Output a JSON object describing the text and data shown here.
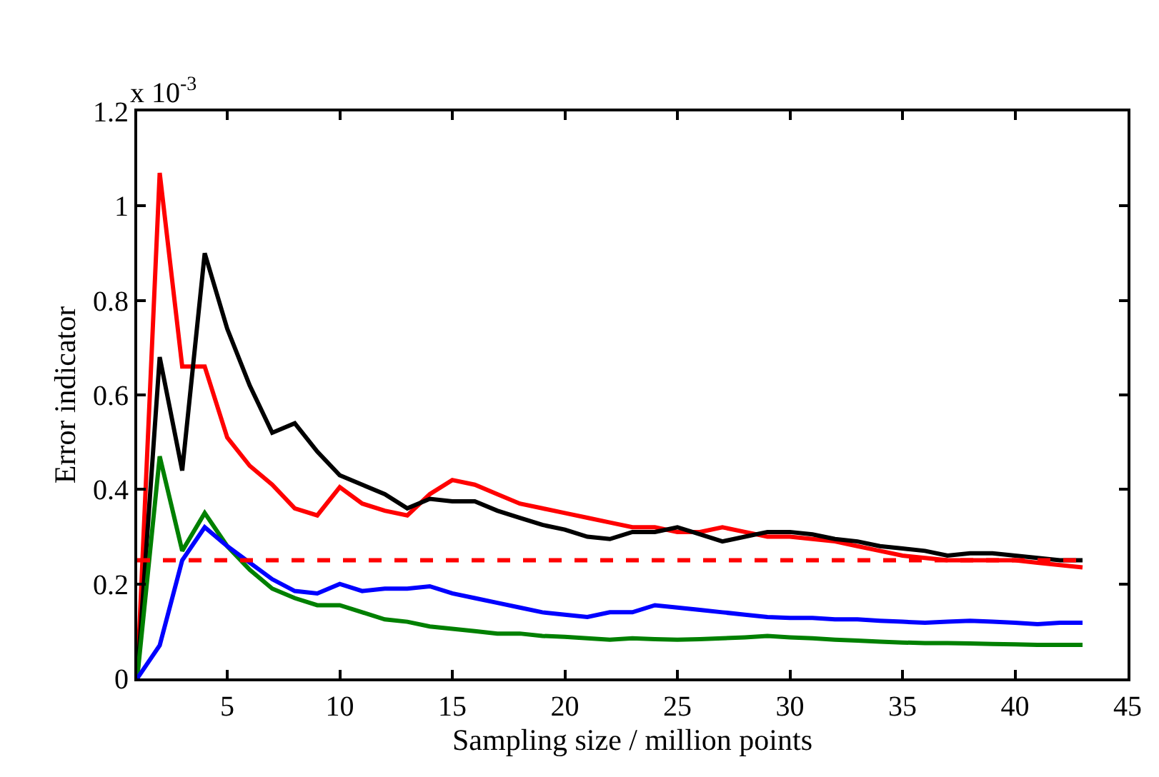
{
  "chart_data": {
    "type": "line",
    "xlabel": "Sampling size / million points",
    "ylabel": "Error indicator",
    "annotations": [
      "x 10$^{-3}$"
    ],
    "x": [
      1,
      2,
      3,
      4,
      5,
      6,
      7,
      8,
      9,
      10,
      11,
      12,
      13,
      14,
      15,
      16,
      17,
      18,
      19,
      20,
      21,
      22,
      23,
      24,
      25,
      26,
      27,
      28,
      29,
      30,
      31,
      32,
      33,
      34,
      35,
      36,
      37,
      38,
      39,
      40,
      41,
      42,
      43
    ],
    "series": [
      {
        "color": "#ff0000",
        "values": [
          0.0,
          1.07,
          0.66,
          0.66,
          0.51,
          0.45,
          0.41,
          0.36,
          0.345,
          0.405,
          0.37,
          0.355,
          0.345,
          0.39,
          0.42,
          0.41,
          0.39,
          0.37,
          0.36,
          0.35,
          0.34,
          0.33,
          0.32,
          0.32,
          0.31,
          0.31,
          0.32,
          0.31,
          0.3,
          0.3,
          0.295,
          0.29,
          0.28,
          0.27,
          0.26,
          0.255,
          0.25,
          0.25,
          0.25,
          0.25,
          0.245,
          0.24,
          0.235
        ]
      },
      {
        "color": "#000000",
        "values": [
          0.0,
          0.68,
          0.44,
          0.9,
          0.74,
          0.62,
          0.52,
          0.54,
          0.48,
          0.43,
          0.41,
          0.39,
          0.36,
          0.38,
          0.375,
          0.375,
          0.355,
          0.34,
          0.325,
          0.315,
          0.3,
          0.295,
          0.31,
          0.31,
          0.32,
          0.305,
          0.29,
          0.3,
          0.31,
          0.31,
          0.305,
          0.295,
          0.29,
          0.28,
          0.275,
          0.27,
          0.26,
          0.265,
          0.265,
          0.26,
          0.255,
          0.25,
          0.25
        ]
      },
      {
        "color": "#008000",
        "values": [
          0.0,
          0.47,
          0.27,
          0.35,
          0.28,
          0.23,
          0.19,
          0.17,
          0.155,
          0.155,
          0.14,
          0.125,
          0.12,
          0.11,
          0.105,
          0.1,
          0.095,
          0.095,
          0.09,
          0.088,
          0.085,
          0.082,
          0.085,
          0.083,
          0.082,
          0.083,
          0.085,
          0.087,
          0.09,
          0.087,
          0.085,
          0.082,
          0.08,
          0.078,
          0.076,
          0.075,
          0.075,
          0.074,
          0.073,
          0.072,
          0.071,
          0.071,
          0.071
        ]
      },
      {
        "color": "#0000ff",
        "values": [
          0.0,
          0.07,
          0.25,
          0.32,
          0.28,
          0.245,
          0.21,
          0.185,
          0.18,
          0.2,
          0.185,
          0.19,
          0.19,
          0.195,
          0.18,
          0.17,
          0.16,
          0.15,
          0.14,
          0.135,
          0.13,
          0.14,
          0.14,
          0.155,
          0.15,
          0.145,
          0.14,
          0.135,
          0.13,
          0.128,
          0.128,
          0.125,
          0.125,
          0.122,
          0.12,
          0.118,
          0.12,
          0.122,
          0.12,
          0.118,
          0.115,
          0.118,
          0.118
        ]
      }
    ],
    "ref_lines": [
      {
        "axis": "y",
        "value": 0.25,
        "color": "#ff0000",
        "line_style": "dashed"
      }
    ],
    "xlim": [
      1,
      45
    ],
    "xticks": [
      5,
      10,
      15,
      20,
      25,
      30,
      35,
      40,
      45
    ],
    "ylim": [
      0,
      1.2
    ],
    "yticks": [
      0,
      0.2,
      0.4,
      0.6,
      0.8,
      1,
      1.2
    ],
    "line_style": "solid",
    "marker": "none"
  }
}
